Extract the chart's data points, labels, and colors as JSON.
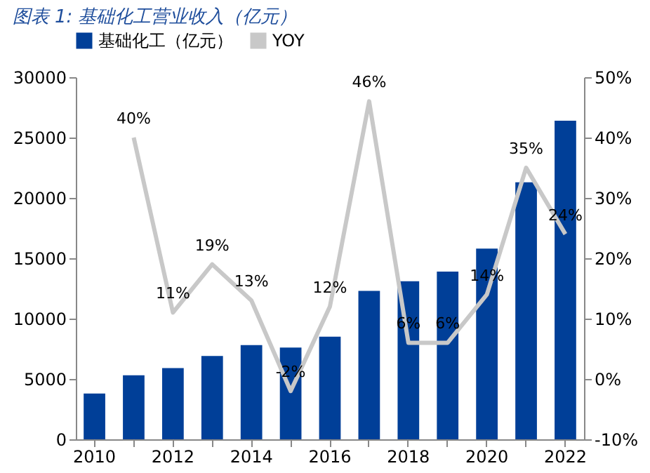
{
  "chart_data": {
    "type": "bar",
    "title": "图表 1: 基础化工营业收入（亿元）",
    "categories": [
      "2010",
      null,
      "2012",
      null,
      "2014",
      null,
      "2016",
      null,
      "2018",
      null,
      "2020",
      null,
      "2022"
    ],
    "series": [
      {
        "name": "基础化工（亿元）",
        "color": "#003f98",
        "values": [
          3800,
          5300,
          5900,
          6900,
          7800,
          7600,
          8500,
          12300,
          13100,
          13900,
          15800,
          21300,
          26400
        ]
      },
      {
        "name": "YOY",
        "type": "line",
        "axis": "y2",
        "color": "#c8c8c8",
        "values": [
          null,
          40,
          11,
          19,
          13,
          -2,
          12,
          46,
          6,
          6,
          14,
          35,
          24
        ],
        "value_labels": [
          null,
          "40%",
          "11%",
          "19%",
          "13%",
          "-2%",
          "12%",
          "46%",
          "6%",
          "6%",
          "14%",
          "35%",
          "24%"
        ]
      }
    ],
    "ylim": [
      0,
      30000
    ],
    "yticks": [
      0,
      5000,
      10000,
      15000,
      20000,
      25000,
      30000
    ],
    "y2lim": [
      -10,
      50
    ],
    "y2ticks": [
      {
        "value": -10,
        "label": "-10%"
      },
      {
        "value": 0,
        "label": "0%"
      },
      {
        "value": 10,
        "label": "10%"
      },
      {
        "value": 20,
        "label": "20%"
      },
      {
        "value": 30,
        "label": "30%"
      },
      {
        "value": 40,
        "label": "40%"
      },
      {
        "value": 50,
        "label": "50%"
      }
    ],
    "legend": "top",
    "grid": false
  }
}
